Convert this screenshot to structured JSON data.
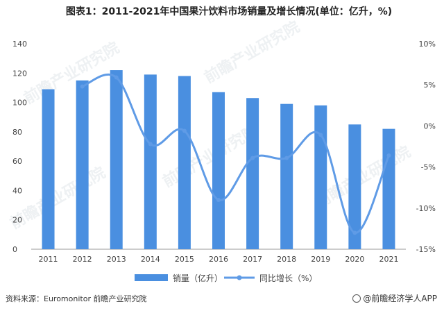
{
  "title": "图表1：2011-2021年中国果汁饮料市场销量及增长情况(单位：亿升，%)",
  "source": "资料来源：Euromonitor 前瞻产业研究院",
  "brand": "@前瞻经济学人APP",
  "watermark": "前瞻产业研究院",
  "colors": {
    "bar": "#4a8fe0",
    "line": "#5f9be6",
    "axis": "#999999",
    "text": "#444444"
  },
  "chart_data": {
    "type": "bar",
    "categories": [
      "2011",
      "2012",
      "2013",
      "2014",
      "2015",
      "2016",
      "2017",
      "2018",
      "2019",
      "2020",
      "2021"
    ],
    "series": [
      {
        "name": "销量（亿升）",
        "type": "bar",
        "axis": "left",
        "values": [
          109,
          115,
          122,
          119,
          118,
          107,
          103,
          99,
          98,
          85,
          82
        ]
      },
      {
        "name": "同比增长（%）",
        "type": "line",
        "axis": "right",
        "values": [
          null,
          4.8,
          5.9,
          -2.2,
          -0.6,
          -9.0,
          -3.9,
          -3.9,
          -1.1,
          -13.0,
          -3.6
        ]
      }
    ],
    "ylim_left": [
      0,
      140
    ],
    "yticks_left": [
      "0",
      "20",
      "40",
      "60",
      "80",
      "100",
      "120",
      "140"
    ],
    "ylim_right": [
      -15,
      10
    ],
    "yticks_right": [
      "-15%",
      "-10%",
      "-5%",
      "0%",
      "5%",
      "10%"
    ],
    "legend_position": "bottom",
    "grid": false
  }
}
